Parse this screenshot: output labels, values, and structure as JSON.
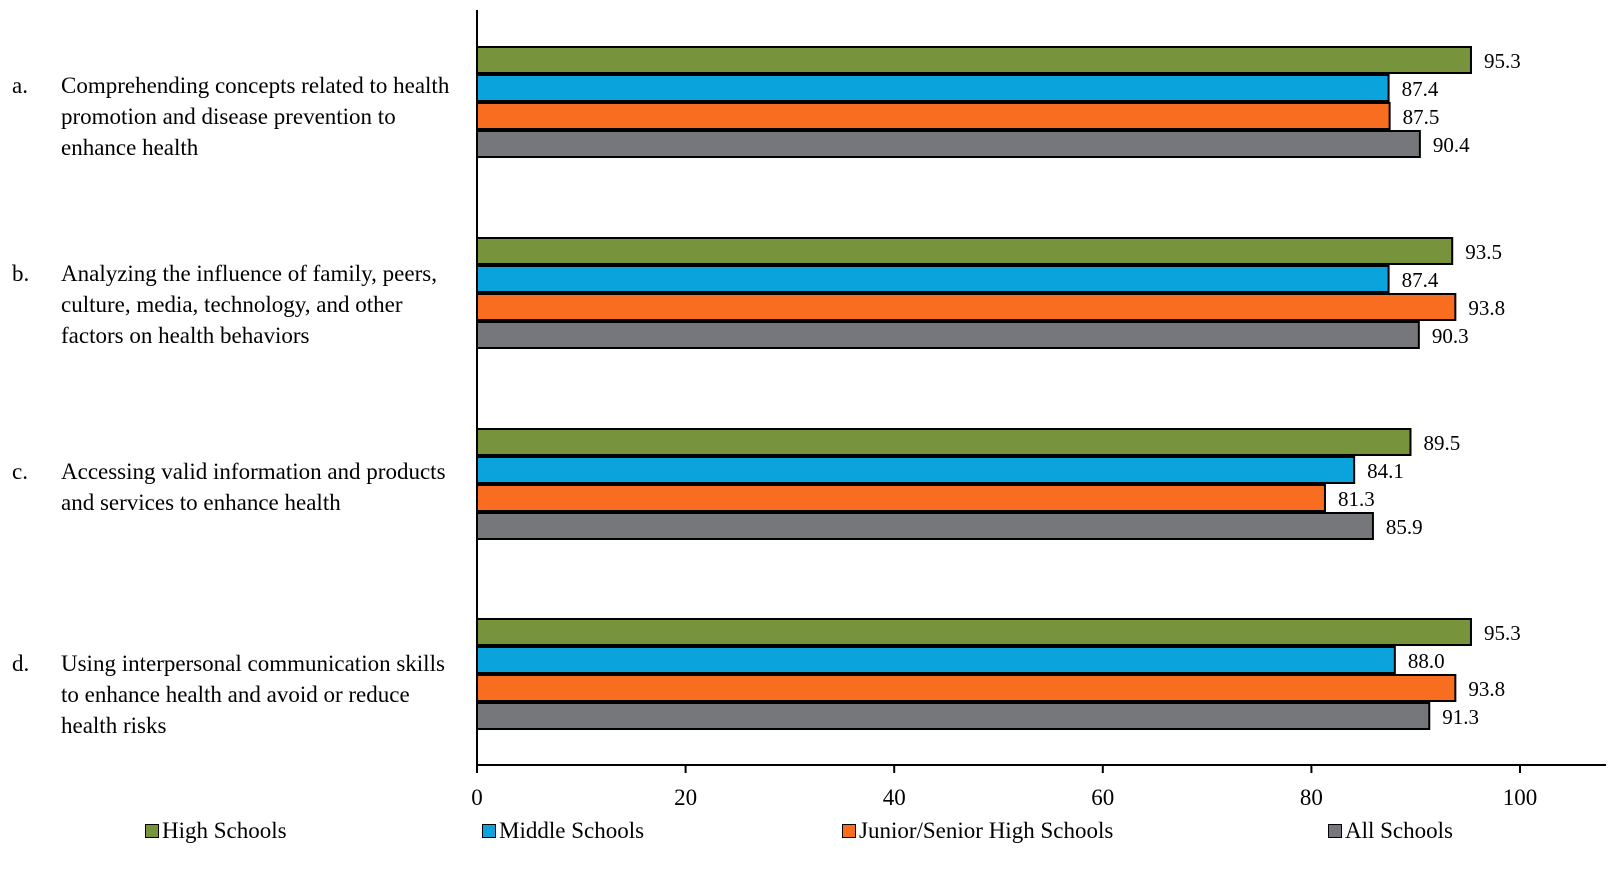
{
  "chart_data": {
    "type": "bar",
    "orientation": "horizontal",
    "categories": [
      {
        "letter": "a.",
        "label": "Comprehending concepts related to health promotion and disease prevention to enhance health"
      },
      {
        "letter": "b.",
        "label": "Analyzing the influence of family, peers, culture, media, technology, and other factors on health behaviors"
      },
      {
        "letter": "c.",
        "label": "Accessing valid information and products and services to enhance health"
      },
      {
        "letter": "d.",
        "label": "Using interpersonal communication skills to enhance health and avoid or reduce health risks"
      }
    ],
    "series": [
      {
        "name": "High Schools",
        "color": "#77933c",
        "values": [
          95.3,
          93.5,
          89.5,
          95.3
        ],
        "labels": [
          "95.3",
          "93.5",
          "89.5",
          "95.3"
        ]
      },
      {
        "name": "Middle Schools",
        "color": "#0aa3dc",
        "values": [
          87.4,
          87.4,
          84.1,
          88.0
        ],
        "labels": [
          "87.4",
          "87.4",
          "84.1",
          "88.0"
        ]
      },
      {
        "name": "Junior/Senior High Schools",
        "color": "#f86d1f",
        "values": [
          87.5,
          93.8,
          81.3,
          93.8
        ],
        "labels": [
          "87.5",
          "93.8",
          "81.3",
          "93.8"
        ]
      },
      {
        "name": "All Schools",
        "color": "#76777a",
        "values": [
          90.4,
          90.3,
          85.9,
          91.3
        ],
        "labels": [
          "90.4",
          "90.3",
          "85.9",
          "91.3"
        ]
      }
    ],
    "xlim": [
      0,
      100
    ],
    "xticks": [
      "0",
      "20",
      "40",
      "60",
      "80",
      "100"
    ],
    "grid": false,
    "legend_position": "bottom"
  }
}
